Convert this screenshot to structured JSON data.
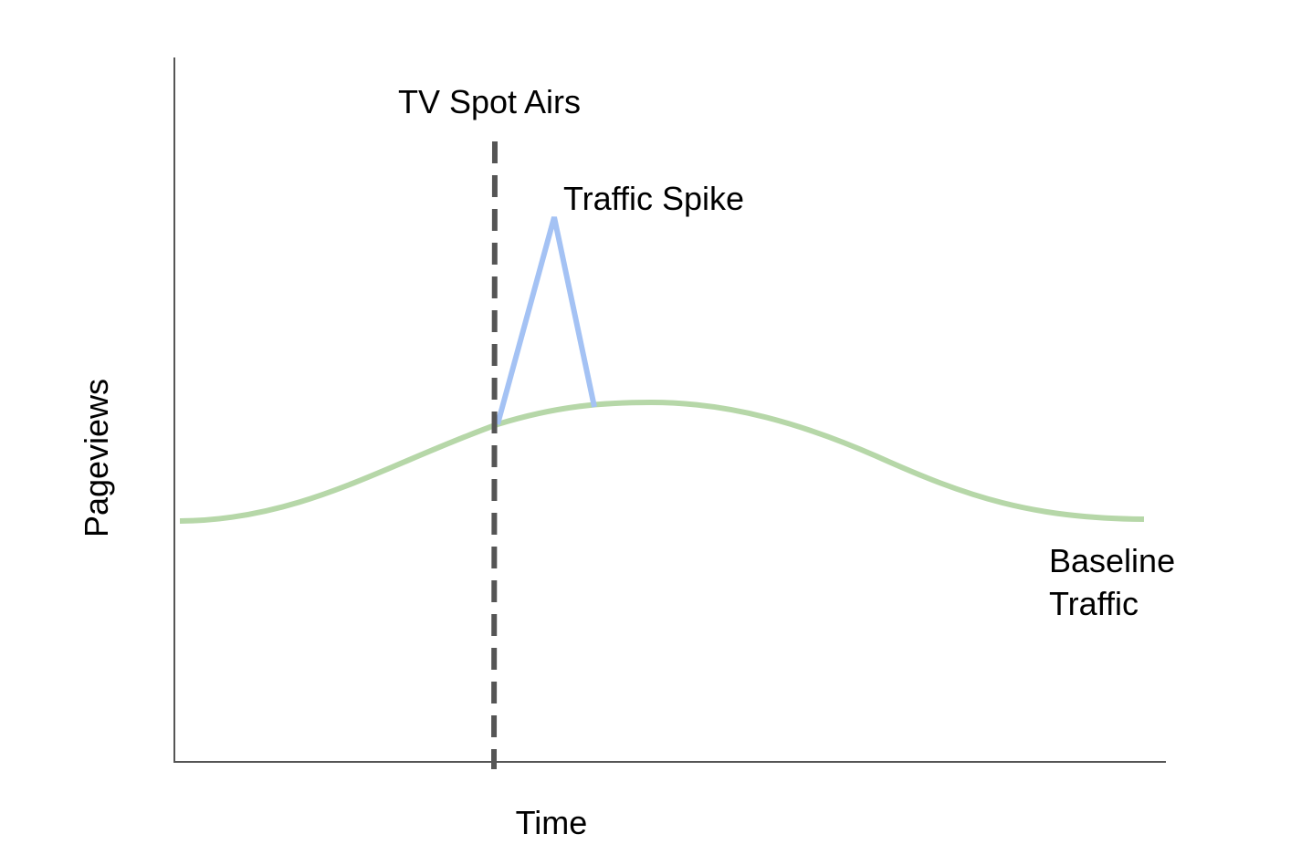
{
  "axes": {
    "x_label": "Time",
    "y_label": "Pageviews"
  },
  "annotations": {
    "event": "TV Spot Airs",
    "spike": "Traffic Spike",
    "baseline": [
      "Baseline",
      "Traffic"
    ]
  }
}
